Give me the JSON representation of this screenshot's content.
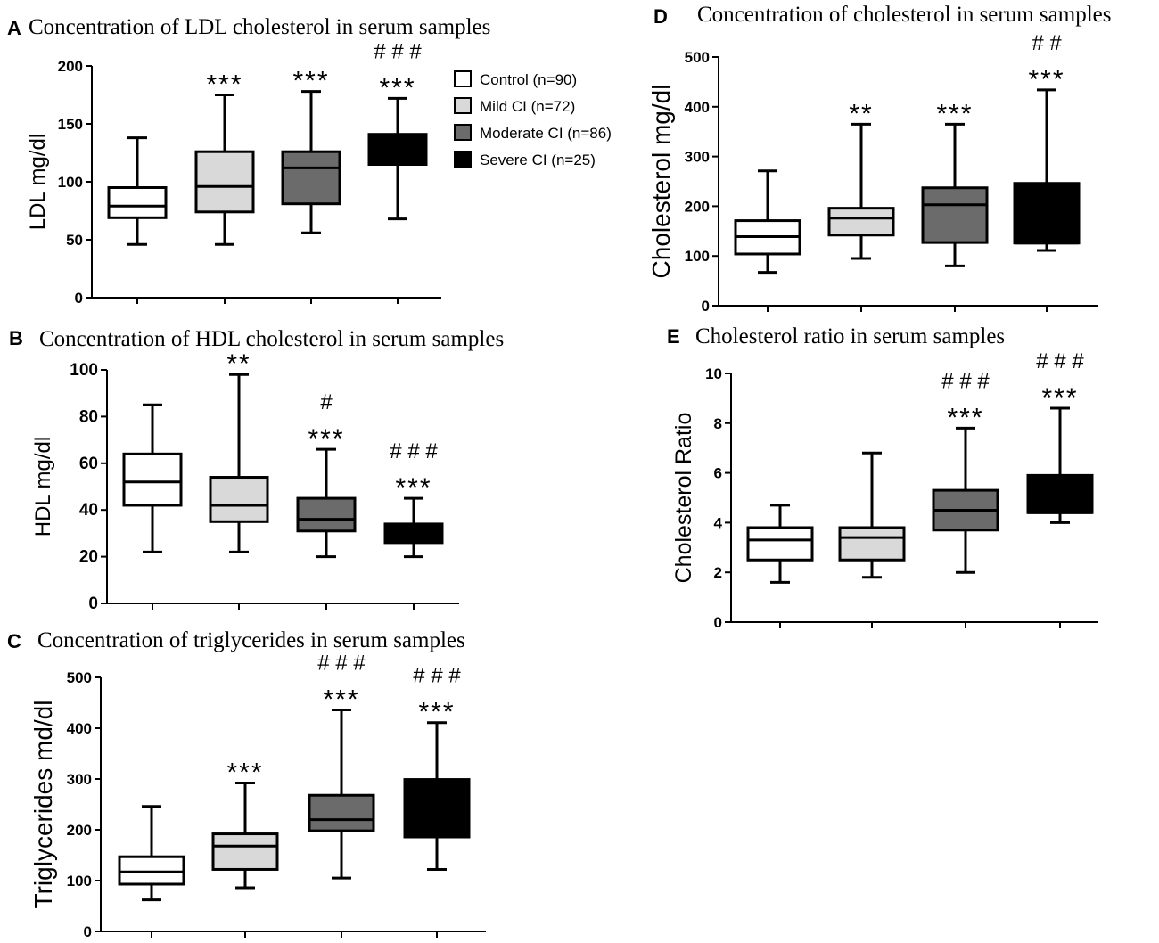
{
  "legend": {
    "items": [
      {
        "label": "Control (n=90)",
        "color": "#ffffff"
      },
      {
        "label": "Mild CI (n=72)",
        "color": "#d9d9d9"
      },
      {
        "label": "Moderate CI (n=86)",
        "color": "#6b6b6b"
      },
      {
        "label": "Severe CI (n=25)",
        "color": "#000000"
      }
    ]
  },
  "chart_data": [
    {
      "panel": "A",
      "type": "boxplot",
      "title": "Concentration of LDL cholesterol in serum samples",
      "ylabel": "LDL mg/dl",
      "ylim": [
        0,
        200
      ],
      "yticks": [
        0,
        50,
        100,
        150,
        200
      ],
      "groups": [
        "Control (n=90)",
        "Mild CI (n=72)",
        "Moderate CI (n=86)",
        "Severe CI (n=25)"
      ],
      "boxes": [
        {
          "min": 46,
          "q1": 69,
          "median": 79,
          "q3": 95,
          "max": 138,
          "annotations": []
        },
        {
          "min": 46,
          "q1": 74,
          "median": 96,
          "q3": 126,
          "max": 175,
          "annotations": [
            "***"
          ]
        },
        {
          "min": 56,
          "q1": 81,
          "median": 112,
          "q3": 126,
          "max": 178,
          "annotations": [
            "***"
          ]
        },
        {
          "min": 68,
          "q1": 115,
          "median": 125,
          "q3": 141,
          "max": 172,
          "annotations": [
            "***",
            "# # #"
          ]
        }
      ]
    },
    {
      "panel": "B",
      "type": "boxplot",
      "title": "Concentration of HDL cholesterol in serum samples",
      "ylabel": "HDL mg/dl",
      "ylim": [
        0,
        100
      ],
      "yticks": [
        0,
        20,
        40,
        60,
        80,
        100
      ],
      "groups": [
        "Control (n=90)",
        "Mild CI (n=72)",
        "Moderate CI (n=86)",
        "Severe CI (n=25)"
      ],
      "boxes": [
        {
          "min": 22,
          "q1": 42,
          "median": 52,
          "q3": 64,
          "max": 85,
          "annotations": []
        },
        {
          "min": 22,
          "q1": 35,
          "median": 42,
          "q3": 54,
          "max": 98,
          "annotations": [
            "**"
          ]
        },
        {
          "min": 20,
          "q1": 31,
          "median": 36,
          "q3": 45,
          "max": 66,
          "annotations": [
            "***",
            "#"
          ]
        },
        {
          "min": 20,
          "q1": 26,
          "median": 30,
          "q3": 34,
          "max": 45,
          "annotations": [
            "***",
            "# # #"
          ]
        }
      ]
    },
    {
      "panel": "C",
      "type": "boxplot",
      "title": "Concentration of triglycerides in serum samples",
      "ylabel": "Triglycerides md/dl",
      "ylim": [
        0,
        500
      ],
      "yticks": [
        0,
        100,
        200,
        300,
        400,
        500
      ],
      "groups": [
        "Control (n=90)",
        "Mild CI (n=72)",
        "Moderate CI (n=86)",
        "Severe CI (n=25)"
      ],
      "boxes": [
        {
          "min": 62,
          "q1": 93,
          "median": 117,
          "q3": 147,
          "max": 246,
          "annotations": []
        },
        {
          "min": 86,
          "q1": 122,
          "median": 168,
          "q3": 192,
          "max": 292,
          "annotations": [
            "***"
          ]
        },
        {
          "min": 105,
          "q1": 198,
          "median": 220,
          "q3": 268,
          "max": 436,
          "annotations": [
            "***",
            "# # #"
          ]
        },
        {
          "min": 122,
          "q1": 186,
          "median": 186,
          "q3": 299,
          "max": 411,
          "annotations": [
            "***",
            "# # #"
          ]
        }
      ]
    },
    {
      "panel": "D",
      "type": "boxplot",
      "title": "Concentration of cholesterol in serum samples",
      "ylabel": "Cholesterol mg/dl",
      "ylim": [
        0,
        500
      ],
      "yticks": [
        0,
        100,
        200,
        300,
        400,
        500
      ],
      "groups": [
        "Control (n=90)",
        "Mild CI (n=72)",
        "Moderate CI (n=86)",
        "Severe CI (n=25)"
      ],
      "boxes": [
        {
          "min": 67,
          "q1": 104,
          "median": 139,
          "q3": 171,
          "max": 271,
          "annotations": []
        },
        {
          "min": 95,
          "q1": 142,
          "median": 176,
          "q3": 196,
          "max": 365,
          "annotations": [
            "**"
          ]
        },
        {
          "min": 80,
          "q1": 127,
          "median": 203,
          "q3": 237,
          "max": 365,
          "annotations": [
            "***"
          ]
        },
        {
          "min": 111,
          "q1": 126,
          "median": 126,
          "q3": 246,
          "max": 434,
          "annotations": [
            "***",
            "# #"
          ]
        }
      ]
    },
    {
      "panel": "E",
      "type": "boxplot",
      "title": "Cholesterol ratio in serum samples",
      "ylabel": "Cholesterol Ratio",
      "ylim": [
        0,
        10
      ],
      "yticks": [
        0,
        2,
        4,
        6,
        8,
        10
      ],
      "groups": [
        "Control (n=90)",
        "Mild CI (n=72)",
        "Moderate CI (n=86)",
        "Severe CI (n=25)"
      ],
      "boxes": [
        {
          "min": 1.6,
          "q1": 2.5,
          "median": 3.3,
          "q3": 3.8,
          "max": 4.7,
          "annotations": []
        },
        {
          "min": 1.8,
          "q1": 2.5,
          "median": 3.4,
          "q3": 3.8,
          "max": 6.8,
          "annotations": []
        },
        {
          "min": 2.0,
          "q1": 3.7,
          "median": 4.5,
          "q3": 5.3,
          "max": 7.8,
          "annotations": [
            "***",
            "# # #"
          ]
        },
        {
          "min": 4.0,
          "q1": 4.4,
          "median": 4.4,
          "q3": 5.9,
          "max": 8.6,
          "annotations": [
            "***",
            "# # #"
          ]
        }
      ]
    }
  ]
}
